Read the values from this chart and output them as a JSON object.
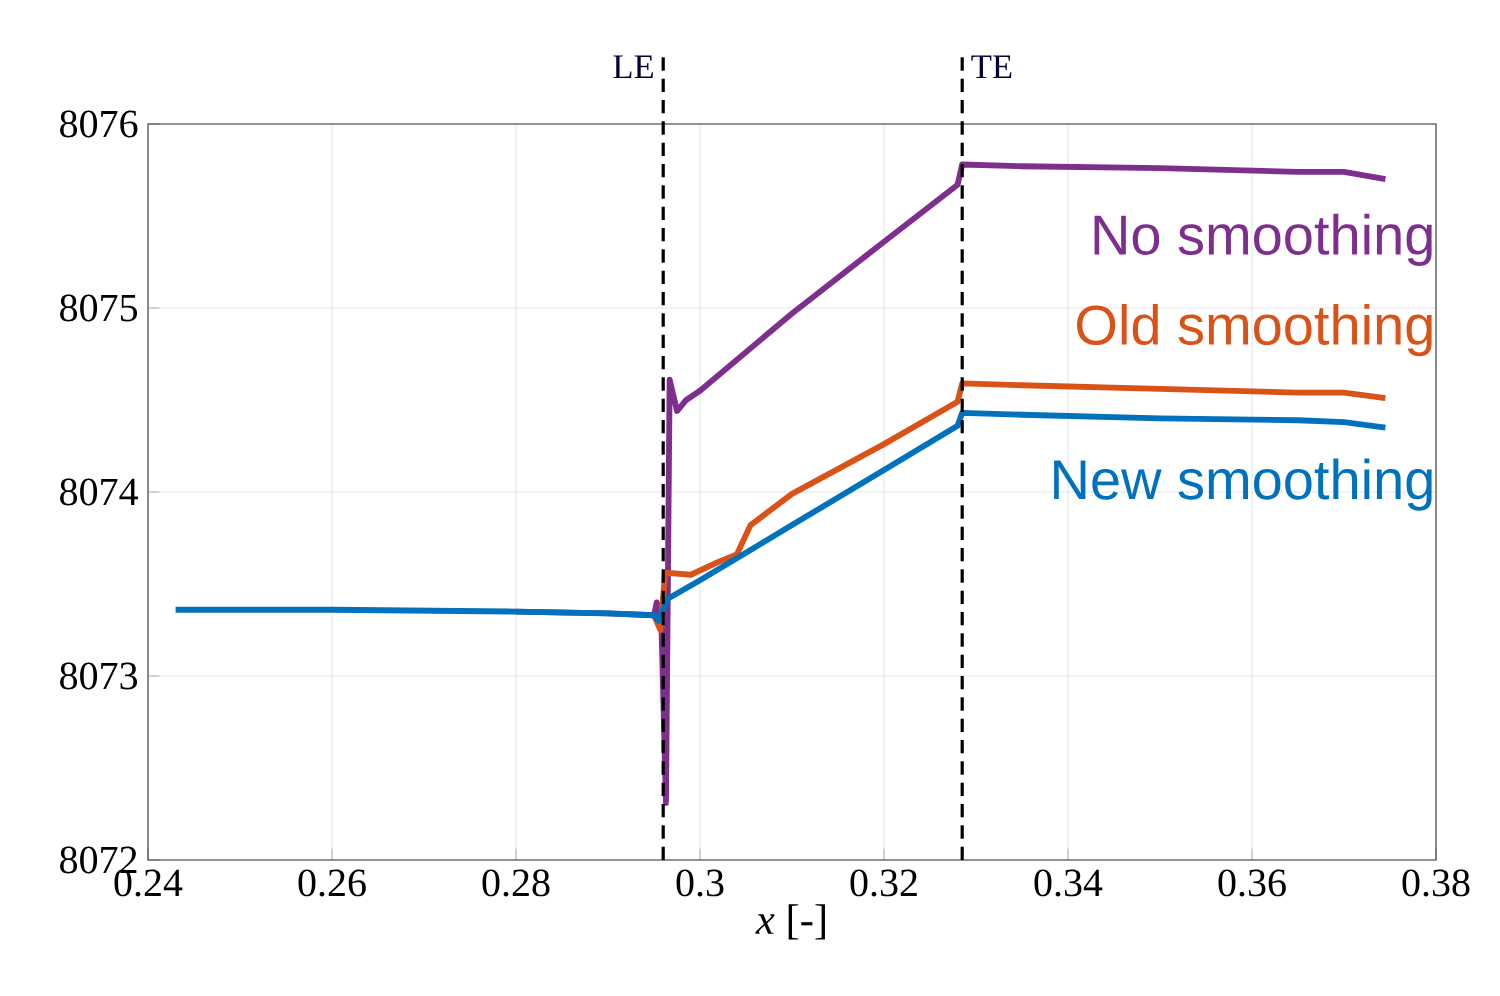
{
  "chart_data": {
    "type": "line",
    "xlabel": "*x* [-]",
    "xlim": [
      0.24,
      0.38
    ],
    "xticks": [
      0.24,
      0.26,
      0.28,
      0.3,
      0.32,
      0.34,
      0.36,
      0.38
    ],
    "ylim": [
      8072,
      8076
    ],
    "yticks": [
      8072,
      8073,
      8074,
      8075,
      8076
    ],
    "grid": true,
    "line_style": "solid",
    "ref_lines": [
      {
        "axis": "x",
        "value": 0.296,
        "label": "LE",
        "color": "#000000",
        "line_style": "dashed"
      },
      {
        "axis": "x",
        "value": 0.3285,
        "label": "TE",
        "color": "#000000",
        "line_style": "dashed"
      }
    ],
    "series": [
      {
        "name": "No smoothing",
        "color": "#7e2f8e",
        "x": [
          0.28,
          0.29,
          0.295,
          0.2953,
          0.2958,
          0.2963,
          0.2967,
          0.2975,
          0.2985,
          0.3,
          0.31,
          0.32,
          0.328,
          0.3285,
          0.335,
          0.35,
          0.365,
          0.37,
          0.3745
        ],
        "values": [
          8073.35,
          8073.34,
          8073.33,
          8073.4,
          8073.3,
          8072.31,
          8074.61,
          8074.44,
          8074.5,
          8074.55,
          8074.97,
          8075.36,
          8075.67,
          8075.78,
          8075.77,
          8075.76,
          8075.74,
          8075.74,
          8075.7
        ]
      },
      {
        "name": "Old smoothing",
        "color": "#d95319",
        "x": [
          0.295,
          0.2957,
          0.2962,
          0.2965,
          0.299,
          0.302,
          0.304,
          0.3055,
          0.31,
          0.32,
          0.328,
          0.3285,
          0.335,
          0.35,
          0.365,
          0.37,
          0.3745
        ],
        "values": [
          8073.33,
          8073.25,
          8073.56,
          8073.56,
          8073.55,
          8073.62,
          8073.66,
          8073.82,
          8073.99,
          8074.26,
          8074.49,
          8074.59,
          8074.58,
          8074.56,
          8074.54,
          8074.54,
          8074.51
        ]
      },
      {
        "name": "New smoothing",
        "color": "#0072bd",
        "x": [
          0.243,
          0.26,
          0.28,
          0.29,
          0.295,
          0.2955,
          0.296,
          0.2965,
          0.3,
          0.305,
          0.31,
          0.32,
          0.328,
          0.3285,
          0.335,
          0.35,
          0.365,
          0.37,
          0.3745
        ],
        "values": [
          8073.36,
          8073.36,
          8073.35,
          8073.34,
          8073.33,
          8073.3,
          8073.36,
          8073.42,
          8073.52,
          8073.67,
          8073.82,
          8074.12,
          8074.36,
          8074.43,
          8074.42,
          8074.4,
          8074.39,
          8074.38,
          8074.35
        ]
      }
    ]
  }
}
